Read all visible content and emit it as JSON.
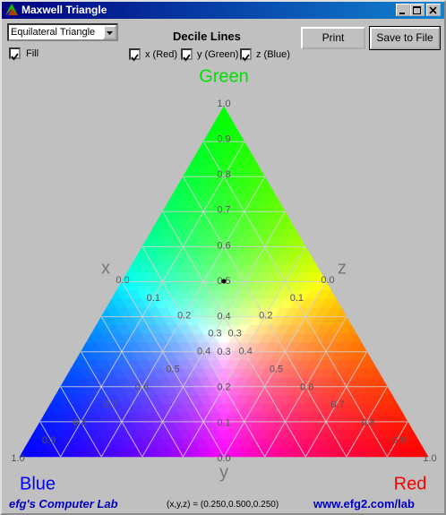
{
  "window": {
    "title": "Maxwell Triangle"
  },
  "controls": {
    "shape_select": "Equilateral Triangle",
    "fill": "Fill",
    "decile_heading": "Decile Lines",
    "x_check": "x (Red)",
    "y_check": "y (Green)",
    "z_check": "z (Blue)",
    "print": "Print",
    "save": "Save to File"
  },
  "triangle": {
    "top": "Green",
    "left": "Blue",
    "right": "Red",
    "x_axis": "x",
    "y_axis": "y",
    "z_axis": "z",
    "x_deciles": [
      "0.0",
      "0.1",
      "0.2",
      "0.3",
      "0.4",
      "0.5",
      "0.6",
      "0.7",
      "0.8",
      "0.9",
      "1.0"
    ],
    "y_deciles": [
      "0.0",
      "0.1",
      "0.2",
      "0.3",
      "0.4",
      "0.5",
      "0.6",
      "0.7",
      "0.8",
      "0.9",
      "1.0"
    ],
    "z_deciles": [
      "0.0",
      "0.1",
      "0.2",
      "0.3",
      "0.4",
      "0.5",
      "0.6",
      "0.7",
      "0.8",
      "0.9",
      "1.0"
    ]
  },
  "footer": {
    "left": "efg's Computer Lab",
    "status": "(x,y,z) = (0.250,0.500,0.250)",
    "right": "www.efg2.com/lab"
  }
}
